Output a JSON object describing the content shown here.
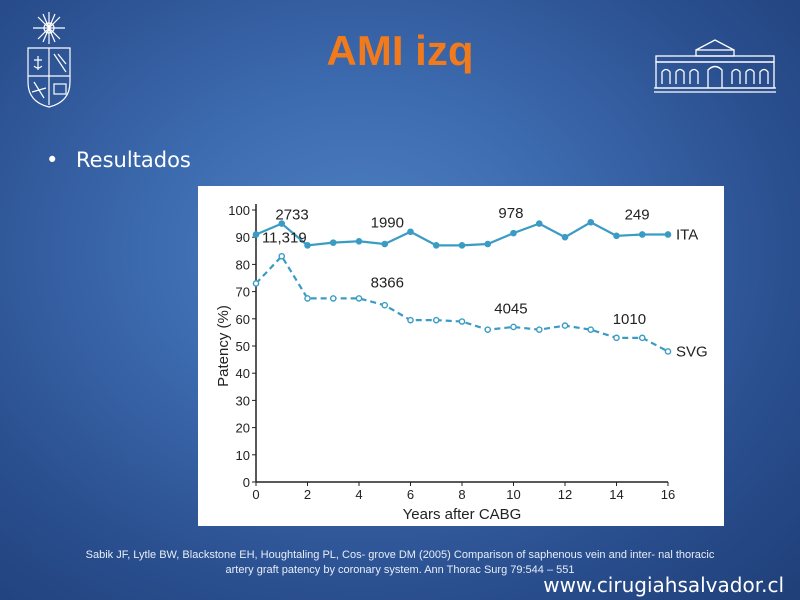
{
  "slide": {
    "title": "AMI izq",
    "bullet": "Resultados",
    "citation_line1": "Sabik JF, Lytle BW, Blackstone EH, Houghtaling PL, Cos- grove DM (2005) Comparison of saphenous vein and inter- nal thoracic",
    "citation_line2": "artery graft patency by coronary system. Ann Thorac Surg 79:544 – 551",
    "website": "www.cirugiahsalvador.cl"
  },
  "colors": {
    "title": "#f07a1c",
    "ita_line": "#3a9cc4",
    "svg_line": "#3a9cc4"
  },
  "chart_data": {
    "type": "line",
    "xlabel": "Years after CABG",
    "ylabel": "Patency (%)",
    "xlim": [
      0,
      16
    ],
    "ylim": [
      0,
      100
    ],
    "x_ticks": [
      0,
      2,
      4,
      6,
      8,
      10,
      12,
      14,
      16
    ],
    "y_ticks": [
      0,
      10,
      20,
      30,
      40,
      50,
      60,
      70,
      80,
      90,
      100
    ],
    "grid": false,
    "series": [
      {
        "name": "ITA",
        "style": "solid",
        "x": [
          0,
          1,
          2,
          3,
          4,
          5,
          6,
          7,
          8,
          9,
          10,
          11,
          12,
          13,
          14,
          15,
          16
        ],
        "values": [
          91,
          95,
          87,
          88,
          88.5,
          87.5,
          92,
          87,
          87,
          87.5,
          91.5,
          95,
          90,
          95.5,
          90.5,
          91,
          91
        ]
      },
      {
        "name": "SVG",
        "style": "dashed",
        "x": [
          0,
          1,
          2,
          3,
          4,
          5,
          6,
          7,
          8,
          9,
          10,
          11,
          12,
          13,
          14,
          15,
          16
        ],
        "values": [
          73,
          83,
          67.5,
          67.5,
          67.5,
          65,
          59.5,
          59.5,
          59,
          56,
          57,
          56,
          57.5,
          56,
          53,
          53,
          48
        ]
      }
    ],
    "annotations": [
      {
        "text": "2733",
        "x": 1.4,
        "y": 96.5
      },
      {
        "text": "11,319",
        "x": 1.1,
        "y": 88
      },
      {
        "text": "1990",
        "x": 5.1,
        "y": 93.5
      },
      {
        "text": "978",
        "x": 9.9,
        "y": 97
      },
      {
        "text": "249",
        "x": 14.8,
        "y": 96.5
      },
      {
        "text": "8366",
        "x": 5.1,
        "y": 71.5
      },
      {
        "text": "4045",
        "x": 9.9,
        "y": 62
      },
      {
        "text": "1010",
        "x": 14.5,
        "y": 58
      }
    ]
  }
}
